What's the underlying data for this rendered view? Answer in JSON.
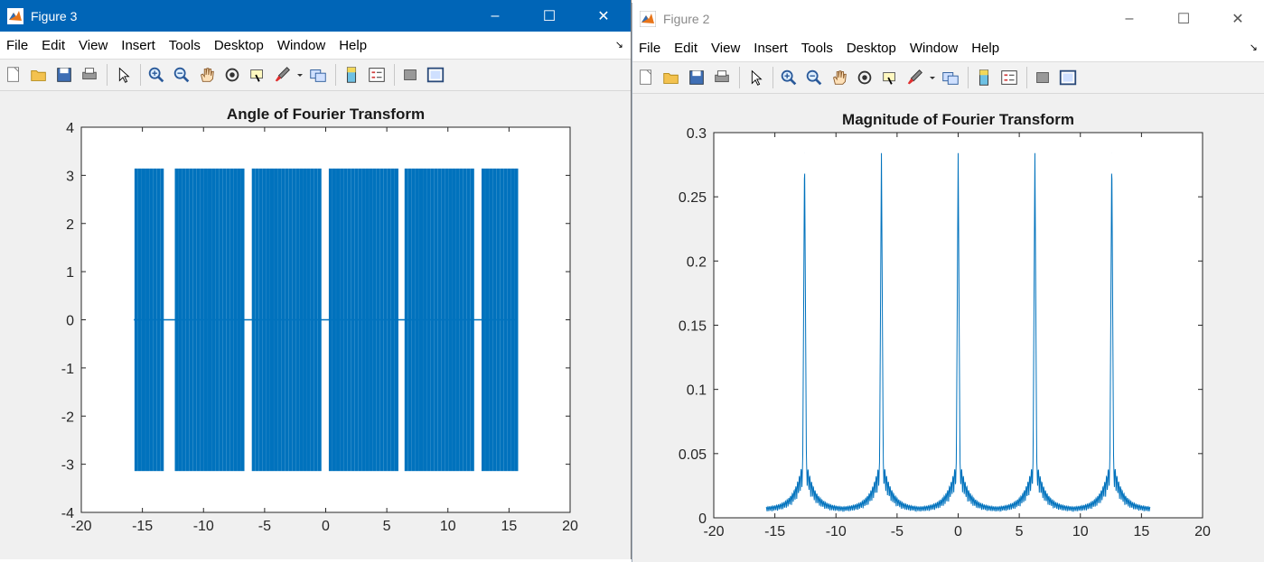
{
  "figure3": {
    "title": "Figure 3",
    "menu": [
      "File",
      "Edit",
      "View",
      "Insert",
      "Tools",
      "Desktop",
      "Window",
      "Help"
    ],
    "plot_title": "Angle of Fourier Transform"
  },
  "figure2": {
    "title": "Figure 2",
    "menu": [
      "File",
      "Edit",
      "View",
      "Insert",
      "Tools",
      "Desktop",
      "Window",
      "Help"
    ],
    "plot_title": "Magnitude of Fourier Transform"
  },
  "toolbar_icons": [
    "new-figure-icon",
    "open-file-icon",
    "save-icon",
    "print-icon",
    "pointer-icon",
    "zoom-in-icon",
    "zoom-out-icon",
    "pan-hand-icon",
    "rotate-3d-icon",
    "data-cursor-icon",
    "brush-icon",
    "link-plot-icon",
    "colorbar-icon",
    "legend-icon",
    "hide-plot-tools-icon",
    "show-plot-tools-icon"
  ],
  "colors": {
    "series": "#0072bd",
    "active_titlebar": "#0065b7"
  },
  "chart_data": [
    {
      "type": "line",
      "title": "Angle of Fourier Transform",
      "xlabel": "",
      "ylabel": "",
      "xlim": [
        -20,
        20
      ],
      "ylim": [
        -4,
        4
      ],
      "xticks": [
        -20,
        -15,
        -10,
        -5,
        0,
        5,
        10,
        15,
        20
      ],
      "yticks": [
        -4,
        -3,
        -2,
        -1,
        0,
        1,
        2,
        3,
        4
      ],
      "x_range": [
        -15.7,
        15.7
      ],
      "values_alternate_between": [
        -3.14159,
        3.14159
      ],
      "baseline": 0,
      "bar_group_x_positions": [
        -15.5,
        -15.2,
        -14.9,
        -14.6,
        -14.3,
        -14.0,
        -13.7,
        -13.4,
        -12.2,
        -11.9,
        -11.6,
        -11.3,
        -11.0,
        -10.7,
        -10.4,
        -10.1,
        -9.8,
        -9.5,
        -9.2,
        -8.9,
        -8.6,
        -8.3,
        -8.0,
        -7.7,
        -7.4,
        -7.1,
        -6.8,
        -5.9,
        -5.6,
        -5.3,
        -5.0,
        -4.7,
        -4.4,
        -4.1,
        -3.8,
        -3.5,
        -3.2,
        -2.9,
        -2.6,
        -2.3,
        -2.0,
        -1.7,
        -1.4,
        -1.1,
        -0.8,
        -0.5,
        0.4,
        0.7,
        1.0,
        1.3,
        1.6,
        1.9,
        2.2,
        2.5,
        2.8,
        3.1,
        3.4,
        3.7,
        4.0,
        4.3,
        4.6,
        4.9,
        5.2,
        5.5,
        5.8,
        6.6,
        6.9,
        7.2,
        7.5,
        7.8,
        8.1,
        8.4,
        8.7,
        9.0,
        9.3,
        9.6,
        9.9,
        10.2,
        10.5,
        10.8,
        11.1,
        11.4,
        11.7,
        12.0,
        12.9,
        13.2,
        13.5,
        13.8,
        14.1,
        14.4,
        14.7,
        15.0,
        15.3,
        15.6
      ]
    },
    {
      "type": "line",
      "title": "Magnitude of Fourier Transform",
      "xlabel": "",
      "ylabel": "",
      "xlim": [
        -20,
        20
      ],
      "ylim": [
        0,
        0.3
      ],
      "xticks": [
        -20,
        -15,
        -10,
        -5,
        0,
        5,
        10,
        15,
        20
      ],
      "yticks": [
        0,
        0.05,
        0.1,
        0.15,
        0.2,
        0.25,
        0.3
      ],
      "x_range": [
        -15.7,
        15.7
      ],
      "peaks": [
        {
          "x": -12.57,
          "y": 0.284
        },
        {
          "x": -6.28,
          "y": 0.284
        },
        {
          "x": 0,
          "y": 0.284
        },
        {
          "x": 6.28,
          "y": 0.284
        },
        {
          "x": 12.57,
          "y": 0.284
        }
      ],
      "sidelobe_floor": 0.008,
      "sidelobe_near_peak": 0.044
    }
  ]
}
